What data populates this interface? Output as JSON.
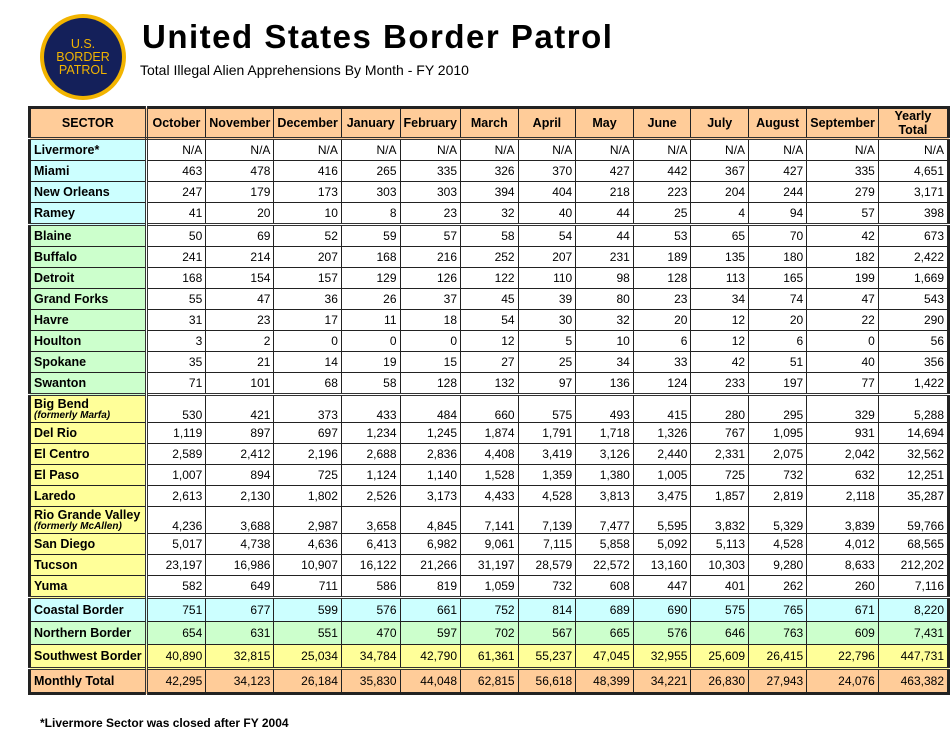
{
  "header": {
    "logo_text": [
      "U.S.",
      "BORDER",
      "PATROL"
    ],
    "title": "United States Border Patrol",
    "subtitle": "Total Illegal Alien Apprehensions By Month - FY 2010"
  },
  "colors": {
    "header": "#ffcc99",
    "coastal": "#ccffff",
    "northern": "#ccffcc",
    "southwest": "#ffff99",
    "total": "#ffcc99",
    "logo_gold": "#f2b400",
    "logo_navy": "#14205a"
  },
  "table": {
    "columns": [
      "SECTOR",
      "October",
      "November",
      "December",
      "January",
      "February",
      "March",
      "April",
      "May",
      "June",
      "July",
      "August",
      "September",
      "Yearly Total"
    ],
    "rows": [
      {
        "group": "coastal",
        "name": "Livermore*",
        "values": [
          "N/A",
          "N/A",
          "N/A",
          "N/A",
          "N/A",
          "N/A",
          "N/A",
          "N/A",
          "N/A",
          "N/A",
          "N/A",
          "N/A",
          "N/A"
        ]
      },
      {
        "group": "coastal",
        "name": "Miami",
        "values": [
          "463",
          "478",
          "416",
          "265",
          "335",
          "326",
          "370",
          "427",
          "442",
          "367",
          "427",
          "335",
          "4,651"
        ]
      },
      {
        "group": "coastal",
        "name": "New Orleans",
        "values": [
          "247",
          "179",
          "173",
          "303",
          "303",
          "394",
          "404",
          "218",
          "223",
          "204",
          "244",
          "279",
          "3,171"
        ]
      },
      {
        "group": "coastal",
        "name": "Ramey",
        "values": [
          "41",
          "20",
          "10",
          "8",
          "23",
          "32",
          "40",
          "44",
          "25",
          "4",
          "94",
          "57",
          "398"
        ]
      },
      {
        "group": "northern",
        "name": "Blaine",
        "values": [
          "50",
          "69",
          "52",
          "59",
          "57",
          "58",
          "54",
          "44",
          "53",
          "65",
          "70",
          "42",
          "673"
        ]
      },
      {
        "group": "northern",
        "name": "Buffalo",
        "values": [
          "241",
          "214",
          "207",
          "168",
          "216",
          "252",
          "207",
          "231",
          "189",
          "135",
          "180",
          "182",
          "2,422"
        ]
      },
      {
        "group": "northern",
        "name": "Detroit",
        "values": [
          "168",
          "154",
          "157",
          "129",
          "126",
          "122",
          "110",
          "98",
          "128",
          "113",
          "165",
          "199",
          "1,669"
        ]
      },
      {
        "group": "northern",
        "name": "Grand Forks",
        "values": [
          "55",
          "47",
          "36",
          "26",
          "37",
          "45",
          "39",
          "80",
          "23",
          "34",
          "74",
          "47",
          "543"
        ]
      },
      {
        "group": "northern",
        "name": "Havre",
        "values": [
          "31",
          "23",
          "17",
          "11",
          "18",
          "54",
          "30",
          "32",
          "20",
          "12",
          "20",
          "22",
          "290"
        ]
      },
      {
        "group": "northern",
        "name": "Houlton",
        "values": [
          "3",
          "2",
          "0",
          "0",
          "0",
          "12",
          "5",
          "10",
          "6",
          "12",
          "6",
          "0",
          "56"
        ]
      },
      {
        "group": "northern",
        "name": "Spokane",
        "values": [
          "35",
          "21",
          "14",
          "19",
          "15",
          "27",
          "25",
          "34",
          "33",
          "42",
          "51",
          "40",
          "356"
        ]
      },
      {
        "group": "northern",
        "name": "Swanton",
        "values": [
          "71",
          "101",
          "68",
          "58",
          "128",
          "132",
          "97",
          "136",
          "124",
          "233",
          "197",
          "77",
          "1,422"
        ]
      },
      {
        "group": "southwest",
        "name": "Big Bend",
        "sub": "(formerly Marfa)",
        "values": [
          "530",
          "421",
          "373",
          "433",
          "484",
          "660",
          "575",
          "493",
          "415",
          "280",
          "295",
          "329",
          "5,288"
        ]
      },
      {
        "group": "southwest",
        "name": "Del Rio",
        "values": [
          "1,119",
          "897",
          "697",
          "1,234",
          "1,245",
          "1,874",
          "1,791",
          "1,718",
          "1,326",
          "767",
          "1,095",
          "931",
          "14,694"
        ]
      },
      {
        "group": "southwest",
        "name": "El Centro",
        "values": [
          "2,589",
          "2,412",
          "2,196",
          "2,688",
          "2,836",
          "4,408",
          "3,419",
          "3,126",
          "2,440",
          "2,331",
          "2,075",
          "2,042",
          "32,562"
        ]
      },
      {
        "group": "southwest",
        "name": "El Paso",
        "values": [
          "1,007",
          "894",
          "725",
          "1,124",
          "1,140",
          "1,528",
          "1,359",
          "1,380",
          "1,005",
          "725",
          "732",
          "632",
          "12,251"
        ]
      },
      {
        "group": "southwest",
        "name": "Laredo",
        "values": [
          "2,613",
          "2,130",
          "1,802",
          "2,526",
          "3,173",
          "4,433",
          "4,528",
          "3,813",
          "3,475",
          "1,857",
          "2,819",
          "2,118",
          "35,287"
        ]
      },
      {
        "group": "southwest",
        "name": "Rio Grande Valley",
        "sub": "(formerly McAllen)",
        "values": [
          "4,236",
          "3,688",
          "2,987",
          "3,658",
          "4,845",
          "7,141",
          "7,139",
          "7,477",
          "5,595",
          "3,832",
          "5,329",
          "3,839",
          "59,766"
        ]
      },
      {
        "group": "southwest",
        "name": "San Diego",
        "values": [
          "5,017",
          "4,738",
          "4,636",
          "6,413",
          "6,982",
          "9,061",
          "7,115",
          "5,858",
          "5,092",
          "5,113",
          "4,528",
          "4,012",
          "68,565"
        ]
      },
      {
        "group": "southwest",
        "name": "Tucson",
        "values": [
          "23,197",
          "16,986",
          "10,907",
          "16,122",
          "21,266",
          "31,197",
          "28,579",
          "22,572",
          "13,160",
          "10,303",
          "9,280",
          "8,633",
          "212,202"
        ]
      },
      {
        "group": "southwest",
        "name": "Yuma",
        "values": [
          "582",
          "649",
          "711",
          "586",
          "819",
          "1,059",
          "732",
          "608",
          "447",
          "401",
          "262",
          "260",
          "7,116"
        ]
      },
      {
        "group": "sum-coastal",
        "name": "Coastal Border",
        "values": [
          "751",
          "677",
          "599",
          "576",
          "661",
          "752",
          "814",
          "689",
          "690",
          "575",
          "765",
          "671",
          "8,220"
        ]
      },
      {
        "group": "sum-northern",
        "name": "Northern Border",
        "values": [
          "654",
          "631",
          "551",
          "470",
          "597",
          "702",
          "567",
          "665",
          "576",
          "646",
          "763",
          "609",
          "7,431"
        ]
      },
      {
        "group": "sum-southwest",
        "name": "Southwest Border",
        "values": [
          "40,890",
          "32,815",
          "25,034",
          "34,784",
          "42,790",
          "61,361",
          "55,237",
          "47,045",
          "32,955",
          "25,609",
          "26,415",
          "22,796",
          "447,731"
        ]
      },
      {
        "group": "sum-total",
        "name": "Monthly Total",
        "values": [
          "42,295",
          "34,123",
          "26,184",
          "35,830",
          "44,048",
          "62,815",
          "56,618",
          "48,399",
          "34,221",
          "26,830",
          "27,943",
          "24,076",
          "463,382"
        ]
      }
    ]
  },
  "footnote": "*Livermore Sector was closed after FY 2004"
}
